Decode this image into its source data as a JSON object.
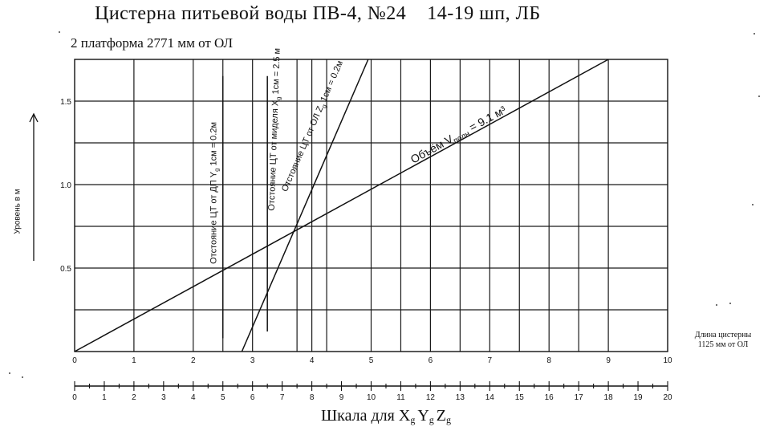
{
  "title": "Цистерна питьевой воды ПВ-4, №24",
  "title_suffix": "14-19 шп, ЛБ",
  "subtitle": "2 платформа 2771 мм от ОЛ",
  "chart_data": {
    "type": "line",
    "title": "Цистерна питьевой воды ПВ-4, №24  14-19 шп, ЛБ",
    "subtitle": "2 платформа 2771 мм от ОЛ",
    "ylabel": "Уровень в м",
    "xlabel": "Шкала для Xg Yg Zg",
    "x": {
      "range": [
        0,
        10
      ],
      "ticks": [
        "0",
        "1",
        "2",
        "3",
        "4",
        "5",
        "6",
        "7",
        "8",
        "9",
        "10"
      ],
      "minor_gridlines": [
        2.5,
        3.75,
        4.25,
        5.5,
        6.5,
        7.5,
        8.5
      ]
    },
    "x_scale2": {
      "range": [
        0,
        20
      ],
      "ticks": [
        "0",
        "1",
        "2",
        "3",
        "4",
        "5",
        "6",
        "7",
        "8",
        "9",
        "10",
        "11",
        "12",
        "13",
        "14",
        "15",
        "16",
        "17",
        "18",
        "19",
        "20"
      ]
    },
    "y": {
      "range": [
        0,
        1.75
      ],
      "ticks": [
        "0.5",
        "1.0",
        "1.5"
      ],
      "gridlines": [
        0.25,
        0.5,
        0.75,
        1.0,
        1.25,
        1.5
      ]
    },
    "grid": true,
    "series": [
      {
        "name": "Объём V полн = 9.1 м³",
        "label_parts": [
          "Объём V",
          "полн",
          " = 9.1 м³"
        ],
        "points": [
          [
            0,
            0
          ],
          [
            9.0,
            1.75
          ]
        ]
      },
      {
        "name": "Отстояние ЦТ от ОЛ Z, 1см = 0.2м",
        "label_parts": [
          "Отстояние ЦТ от ОЛ Z",
          "g",
          " 1см = 0.2м"
        ],
        "points": [
          [
            2.82,
            0
          ],
          [
            4.95,
            1.75
          ]
        ]
      },
      {
        "name": "Отстояние ЦТ от ДП Y, 1см = 0.2м",
        "label_parts": [
          "Отстояние ЦТ от ДП Y",
          "g",
          " 1см = 0.2м"
        ],
        "points": [
          [
            2.5,
            0.08
          ],
          [
            2.5,
            1.65
          ]
        ]
      },
      {
        "name": "Отстояние ЦТ от миделя X, 1см = 2.5 м",
        "label_parts": [
          "Отстояние ЦТ от миделя X",
          "g",
          " 1см = 2.5 м"
        ],
        "points": [
          [
            3.25,
            0.12
          ],
          [
            3.25,
            1.65
          ]
        ]
      }
    ],
    "annotations": [
      "Длина цистерны 1125 мм от ОЛ"
    ]
  },
  "ylabel": "Уровень в м",
  "xlabel": {
    "main": "Шкала для X",
    "sub1": "g",
    "y": "Y",
    "sub2": "g",
    "z": "Z",
    "sub3": "g"
  },
  "endnote": [
    "Длина цистерны",
    "1125 мм от ОЛ"
  ],
  "colors": {
    "ink": "#111111",
    "grid": "#1a1a1a",
    "paper": "#ffffff"
  }
}
